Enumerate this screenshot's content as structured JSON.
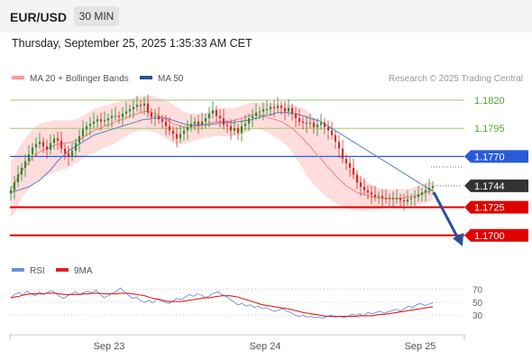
{
  "header": {
    "symbol": "EUR/USD",
    "timeframe": "30 MIN"
  },
  "datetime": "Thursday, September 25, 2025 1:35:33 AM CET",
  "legend": {
    "ma20": "MA 20 + Bollinger Bands",
    "ma50": "MA 50",
    "copyright": "Research © 2025 Trading Central",
    "rsi": "RSI",
    "rsi_ma": "9MA"
  },
  "colors": {
    "up": "#2e8b2e",
    "down": "#d42a2a",
    "band": "#ffb3b3",
    "ma20": "#ff7f7f",
    "ma50": "#5a7fc8",
    "rsi": "#6a8fd8",
    "rsi_ma": "#e02020",
    "resistance": "#9acd6b",
    "pivot": "#2a5bd7",
    "support": "#e00000",
    "last": "#333333",
    "arrow": "#2a5099"
  },
  "chart_data": [
    {
      "type": "candlestick",
      "title": "EUR/USD 30 MIN",
      "x_ticks": [
        "Sep 23",
        "Sep 24",
        "Sep 25"
      ],
      "y_range": [
        1.1683,
        1.1832
      ],
      "levels": [
        {
          "label": "1.1820",
          "value": 1.182,
          "kind": "resistance"
        },
        {
          "label": "1.1795",
          "value": 1.1795,
          "kind": "resistance"
        },
        {
          "label": "1.1770",
          "value": 1.177,
          "kind": "pivot"
        },
        {
          "label": "1.1744",
          "value": 1.1744,
          "kind": "last"
        },
        {
          "label": "1.1725",
          "value": 1.1725,
          "kind": "support"
        },
        {
          "label": "1.1700",
          "value": 1.17,
          "kind": "support"
        }
      ],
      "close": [
        1.174,
        1.1747,
        1.1754,
        1.176,
        1.1766,
        1.1772,
        1.1778,
        1.1781,
        1.1783,
        1.1779,
        1.1776,
        1.1782,
        1.1786,
        1.1784,
        1.1777,
        1.1773,
        1.177,
        1.1775,
        1.1782,
        1.1788,
        1.1794,
        1.1797,
        1.1799,
        1.1801,
        1.1803,
        1.1801,
        1.1802,
        1.1804,
        1.1806,
        1.1806,
        1.1805,
        1.1808,
        1.181,
        1.1812,
        1.1814,
        1.1816,
        1.1815,
        1.1817,
        1.1809,
        1.1805,
        1.1806,
        1.1803,
        1.1801,
        1.1797,
        1.1793,
        1.179,
        1.1786,
        1.179,
        1.1793,
        1.1796,
        1.1799,
        1.1801,
        1.1798,
        1.1801,
        1.1804,
        1.1808,
        1.1811,
        1.1806,
        1.1804,
        1.1798,
        1.1797,
        1.1793,
        1.1795,
        1.1791,
        1.1797,
        1.1799,
        1.1804,
        1.1806,
        1.1809,
        1.181,
        1.1812,
        1.1812,
        1.1814,
        1.1813,
        1.1815,
        1.1813,
        1.181,
        1.1813,
        1.1808,
        1.1804,
        1.1801,
        1.18,
        1.1799,
        1.18,
        1.1796,
        1.1798,
        1.18,
        1.1796,
        1.1793,
        1.1789,
        1.1783,
        1.1777,
        1.1768,
        1.1764,
        1.176,
        1.1754,
        1.1747,
        1.1743,
        1.174,
        1.1738,
        1.1736,
        1.1734,
        1.1735,
        1.1733,
        1.1732,
        1.1733,
        1.1732,
        1.1733,
        1.1731,
        1.173,
        1.1732,
        1.1733,
        1.1734,
        1.1736,
        1.1738,
        1.174,
        1.1742,
        1.1744
      ],
      "ma20": [
        1.174,
        1.1746,
        1.1752,
        1.1757,
        1.1761,
        1.1765,
        1.1769,
        1.1772,
        1.1774,
        1.1776,
        1.1777,
        1.1778,
        1.178,
        1.1781,
        1.1781,
        1.1782,
        1.1782,
        1.1783,
        1.1784,
        1.1785,
        1.1787,
        1.1789,
        1.1791,
        1.1793,
        1.1794,
        1.1795,
        1.1797,
        1.1798,
        1.1799,
        1.1801,
        1.1802,
        1.1803,
        1.1804,
        1.1806,
        1.1807,
        1.1808,
        1.1809,
        1.181,
        1.181,
        1.1809,
        1.1808,
        1.1806,
        1.1805,
        1.1803,
        1.1801,
        1.1799,
        1.1798,
        1.1797,
        1.1796,
        1.1796,
        1.1796,
        1.1797,
        1.1797,
        1.1798,
        1.1799,
        1.18,
        1.18,
        1.1801,
        1.1801,
        1.1801,
        1.1801,
        1.1801,
        1.1802,
        1.1803,
        1.1804,
        1.1805,
        1.1806,
        1.1807,
        1.1807,
        1.1807,
        1.1806,
        1.1805,
        1.1804,
        1.1803,
        1.1802,
        1.1801,
        1.1799,
        1.1797,
        1.1795,
        1.1792,
        1.1789,
        1.1786,
        1.1782,
        1.1779,
        1.1775,
        1.1771,
        1.1768,
        1.1764,
        1.176,
        1.1757,
        1.1753,
        1.175,
        1.1747,
        1.1744,
        1.1742,
        1.174,
        1.1738,
        1.1737,
        1.1736,
        1.1735,
        1.1734,
        1.1734,
        1.1733,
        1.1733,
        1.1733,
        1.1733,
        1.1733,
        1.1733,
        1.1733,
        1.1733,
        1.1734,
        1.1734,
        1.1735,
        1.1736,
        1.1737,
        1.1738,
        1.1739,
        1.174
      ],
      "bb_upper": [
        1.1765,
        1.177,
        1.1776,
        1.1781,
        1.1786,
        1.179,
        1.1794,
        1.1797,
        1.1799,
        1.18,
        1.1801,
        1.1801,
        1.1802,
        1.1802,
        1.1802,
        1.1802,
        1.1802,
        1.1802,
        1.1803,
        1.1804,
        1.1806,
        1.1808,
        1.181,
        1.1812,
        1.1813,
        1.1814,
        1.1815,
        1.1816,
        1.1817,
        1.1818,
        1.1819,
        1.1819,
        1.182,
        1.1821,
        1.1822,
        1.1823,
        1.1823,
        1.1824,
        1.1824,
        1.1824,
        1.1823,
        1.1822,
        1.1821,
        1.182,
        1.1818,
        1.1816,
        1.1814,
        1.1812,
        1.181,
        1.1809,
        1.1808,
        1.1808,
        1.1808,
        1.1808,
        1.1809,
        1.181,
        1.1811,
        1.1812,
        1.1813,
        1.1813,
        1.1813,
        1.1813,
        1.1813,
        1.1814,
        1.1815,
        1.1816,
        1.1817,
        1.1818,
        1.1818,
        1.1818,
        1.1818,
        1.1817,
        1.1817,
        1.1817,
        1.1817,
        1.1817,
        1.1817,
        1.1816,
        1.1816,
        1.1815,
        1.1814,
        1.1813,
        1.1811,
        1.1808,
        1.1805,
        1.1801,
        1.1797,
        1.1793,
        1.1789,
        1.1785,
        1.178,
        1.1775,
        1.177,
        1.1765,
        1.1761,
        1.1757,
        1.1754,
        1.1751,
        1.1749,
        1.1747,
        1.1745,
        1.1743,
        1.1742,
        1.1741,
        1.1741,
        1.1741,
        1.1741,
        1.1741,
        1.1741,
        1.1741,
        1.1741,
        1.1742,
        1.1743,
        1.1744,
        1.1745,
        1.1746,
        1.1747,
        1.1748
      ],
      "bb_lower": [
        1.1716,
        1.172,
        1.1726,
        1.1733,
        1.1737,
        1.1741,
        1.1745,
        1.1748,
        1.175,
        1.1752,
        1.1753,
        1.1754,
        1.1756,
        1.1757,
        1.1758,
        1.1759,
        1.176,
        1.1762,
        1.1764,
        1.1766,
        1.1768,
        1.177,
        1.1772,
        1.1773,
        1.1775,
        1.1776,
        1.1778,
        1.1779,
        1.178,
        1.1782,
        1.1784,
        1.1786,
        1.1788,
        1.179,
        1.1791,
        1.1792,
        1.1793,
        1.1793,
        1.1793,
        1.1792,
        1.1791,
        1.179,
        1.1788,
        1.1786,
        1.1784,
        1.1782,
        1.1781,
        1.1781,
        1.1781,
        1.1782,
        1.1783,
        1.1784,
        1.1785,
        1.1786,
        1.1787,
        1.1787,
        1.1788,
        1.1788,
        1.1788,
        1.1788,
        1.1788,
        1.1788,
        1.1788,
        1.1789,
        1.179,
        1.1791,
        1.1793,
        1.1794,
        1.1794,
        1.1794,
        1.1793,
        1.1792,
        1.179,
        1.1788,
        1.1786,
        1.1784,
        1.1781,
        1.1778,
        1.1774,
        1.1769,
        1.1764,
        1.1759,
        1.1753,
        1.1749,
        1.1745,
        1.1742,
        1.1739,
        1.1736,
        1.1733,
        1.1731,
        1.1729,
        1.1727,
        1.1725,
        1.1724,
        1.1723,
        1.1723,
        1.1722,
        1.1722,
        1.1722,
        1.1722,
        1.1723,
        1.1723,
        1.1723,
        1.1724,
        1.1724,
        1.1725,
        1.1725,
        1.1725,
        1.1726,
        1.1726,
        1.1727,
        1.1727,
        1.1727,
        1.1727,
        1.1728,
        1.1729,
        1.173,
        1.1731
      ],
      "ma50": [
        1.1738,
        1.1739,
        1.174,
        1.1741,
        1.1742,
        1.1743,
        1.1745,
        1.1747,
        1.1749,
        1.1752,
        1.1755,
        1.1758,
        1.1762,
        1.1766,
        1.1769,
        1.1772,
        1.1775,
        1.1777,
        1.1779,
        1.1781,
        1.1783,
        1.1785,
        1.1787,
        1.1789,
        1.179,
        1.1791,
        1.1792,
        1.1793,
        1.1794,
        1.1795,
        1.1796,
        1.1797,
        1.1798,
        1.1799,
        1.18,
        1.1801,
        1.1802,
        1.1803,
        1.1803,
        1.1804,
        1.1804,
        1.1804,
        1.1804,
        1.1804,
        1.1803,
        1.1802,
        1.1801,
        1.18,
        1.1799,
        1.1798,
        1.1798,
        1.1798,
        1.1798,
        1.1798,
        1.1798,
        1.1798,
        1.1799,
        1.1799,
        1.18,
        1.18,
        1.18,
        1.18,
        1.18,
        1.1801,
        1.1801,
        1.1802,
        1.1802,
        1.1803,
        1.1804,
        1.1805,
        1.1806,
        1.1807,
        1.1807,
        1.1808,
        1.1809,
        1.1809,
        1.1809,
        1.1809,
        1.1808,
        1.1808,
        1.1807,
        1.1806,
        1.1805,
        1.1804,
        1.1803,
        1.1802,
        1.1801,
        1.1799,
        1.1797,
        1.1795,
        1.1793,
        1.1791,
        1.1789,
        1.1787,
        1.1785,
        1.1783,
        1.1781,
        1.1779,
        1.1777,
        1.1775,
        1.1773,
        1.1771,
        1.1769,
        1.1767,
        1.1765,
        1.1763,
        1.1761,
        1.1759,
        1.1757,
        1.1755,
        1.1753,
        1.1751,
        1.1749,
        1.1747,
        1.1745,
        1.1743,
        1.1741,
        1.174
      ]
    },
    {
      "type": "line",
      "title": "RSI",
      "y_ticks": [
        70,
        50,
        30
      ],
      "y_range": [
        12,
        82
      ],
      "series": [
        {
          "name": "RSI",
          "values": [
            58,
            62,
            65,
            61,
            67,
            63,
            60,
            66,
            62,
            65,
            68,
            64,
            59,
            56,
            60,
            63,
            66,
            62,
            65,
            67,
            64,
            69,
            62,
            57,
            60,
            64,
            67,
            72,
            66,
            61,
            56,
            58,
            52,
            50,
            53,
            49,
            55,
            52,
            50,
            48,
            52,
            56,
            54,
            58,
            62,
            59,
            63,
            61,
            57,
            60,
            64,
            66,
            62,
            59,
            55,
            50,
            46,
            48,
            44,
            46,
            42,
            44,
            40,
            42,
            38,
            36,
            38,
            40,
            36,
            34,
            30,
            28,
            30,
            27,
            28,
            26,
            27,
            25,
            28,
            30,
            27,
            28,
            26,
            28,
            31,
            30,
            32,
            29,
            34,
            32,
            34,
            36,
            33,
            35,
            37,
            39,
            36,
            40,
            44,
            42,
            46,
            48,
            45,
            47,
            49
          ]
        },
        {
          "name": "9MA",
          "values": [
            57,
            58,
            59,
            61,
            62,
            63,
            63,
            63,
            63,
            64,
            64,
            64,
            63,
            62,
            62,
            62,
            62,
            62,
            63,
            63,
            64,
            64,
            64,
            63,
            63,
            63,
            63,
            64,
            64,
            64,
            63,
            62,
            61,
            60,
            58,
            56,
            55,
            54,
            52,
            51,
            51,
            51,
            51,
            52,
            53,
            54,
            55,
            56,
            57,
            57,
            58,
            59,
            60,
            60,
            60,
            59,
            58,
            56,
            54,
            52,
            50,
            48,
            46,
            45,
            44,
            43,
            42,
            41,
            40,
            39,
            37,
            36,
            34,
            33,
            32,
            31,
            30,
            29,
            28,
            28,
            28,
            28,
            28,
            28,
            28,
            28,
            29,
            29,
            29,
            29,
            30,
            31,
            31,
            32,
            33,
            34,
            35,
            36,
            37,
            38,
            39,
            40,
            41,
            42,
            43
          ]
        }
      ]
    }
  ]
}
